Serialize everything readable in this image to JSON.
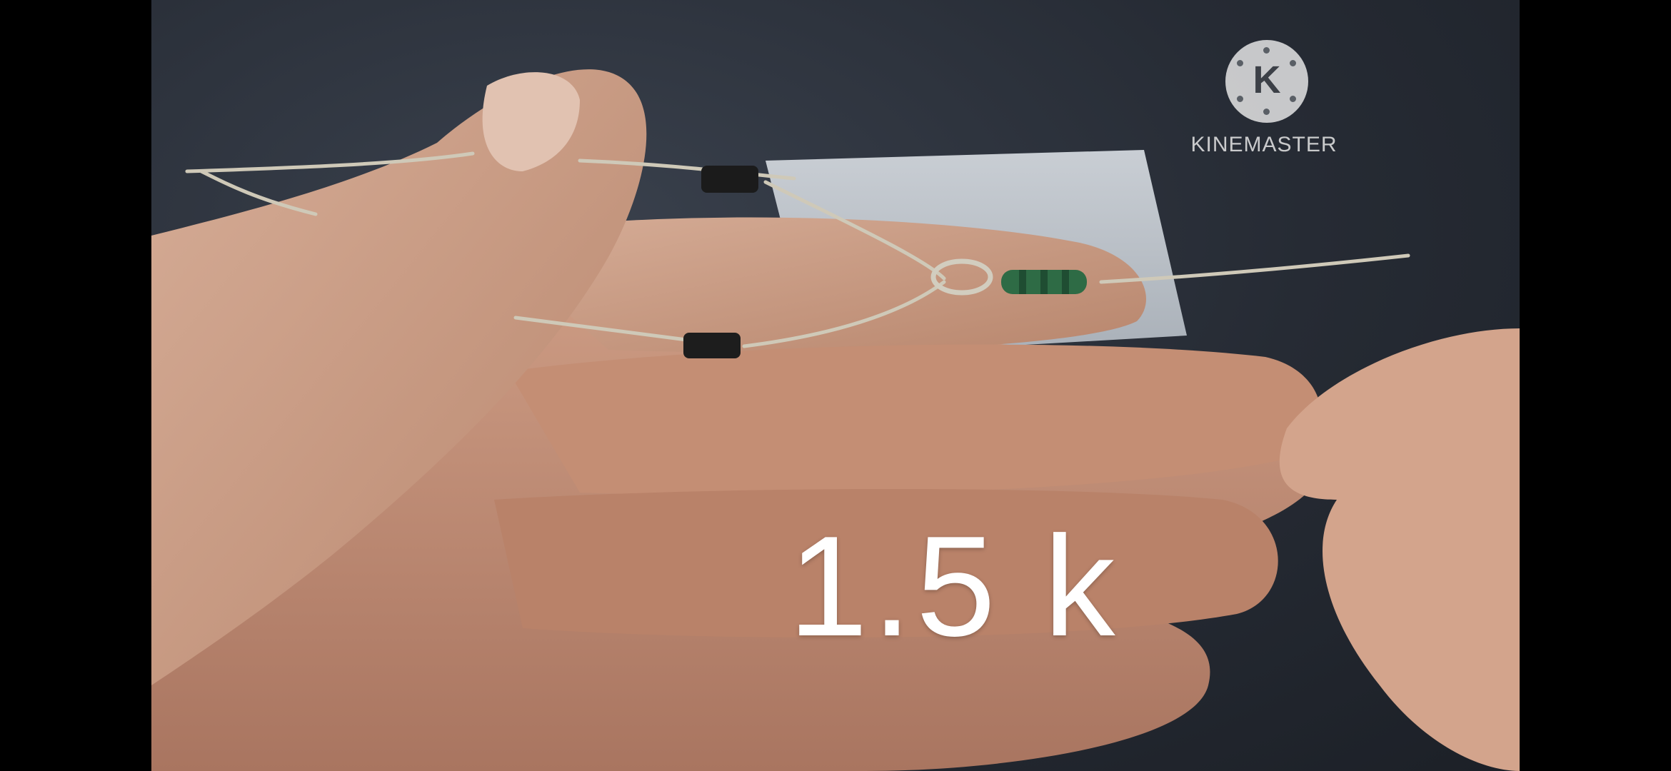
{
  "video": {
    "caption": "1.5 k",
    "watermark": {
      "logo_letter": "K",
      "brand": "KINEMASTER"
    }
  },
  "colors": {
    "background": "#262b34",
    "skin": "#c99a82",
    "resistor_band": "#2f8a4b",
    "diode_body": "#1b1b1b",
    "wire": "#c9c4b4"
  }
}
